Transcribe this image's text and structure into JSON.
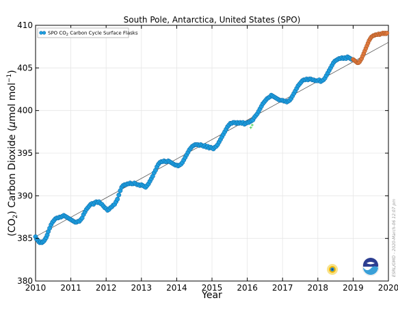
{
  "chart_data": {
    "type": "scatter",
    "title": "South Pole, Antarctica, United States (SPO)",
    "xlabel": "Year",
    "ylabel_parts": [
      "(CO",
      "2",
      ") Carbon Dioxide (",
      "μ",
      "mol mol",
      "−1",
      ")"
    ],
    "xlim": [
      2010,
      2020
    ],
    "ylim": [
      380,
      410
    ],
    "xticks": [
      2010,
      2011,
      2012,
      2013,
      2014,
      2015,
      2016,
      2017,
      2018,
      2019,
      2020
    ],
    "yticks": [
      380,
      385,
      390,
      395,
      400,
      405,
      410
    ],
    "grid": true,
    "legend": {
      "placement": "top-left",
      "text_parts": [
        "SPO CO",
        "2",
        " Carbon Cycle Surface Flasks"
      ]
    },
    "credit": "ESRL/GMD - 2020-March-06 12:07 pm",
    "colors": {
      "flask_fill": "#1e9fe0",
      "flask_edge": "#0d5f9a",
      "prelim_fill": "#e07a3e",
      "prelim_edge": "#9a4c1e",
      "trend": "#555555",
      "outlier": "#4ad15a"
    },
    "series": [
      {
        "kind": "flask",
        "points": [
          [
            2010.0,
            385.2
          ],
          [
            2010.03,
            384.9
          ],
          [
            2010.06,
            384.8
          ],
          [
            2010.09,
            384.6
          ],
          [
            2010.12,
            384.5
          ],
          [
            2010.15,
            384.6
          ],
          [
            2010.18,
            384.5
          ],
          [
            2010.21,
            384.6
          ],
          [
            2010.24,
            384.7
          ],
          [
            2010.27,
            384.9
          ],
          [
            2010.3,
            385.1
          ],
          [
            2010.33,
            385.4
          ],
          [
            2010.36,
            385.8
          ],
          [
            2010.4,
            386.2
          ],
          [
            2010.44,
            386.6
          ],
          [
            2010.48,
            386.9
          ],
          [
            2010.52,
            387.1
          ],
          [
            2010.56,
            387.3
          ],
          [
            2010.6,
            387.4
          ],
          [
            2010.64,
            387.4
          ],
          [
            2010.68,
            387.5
          ],
          [
            2010.72,
            387.5
          ],
          [
            2010.76,
            387.6
          ],
          [
            2010.8,
            387.7
          ],
          [
            2010.84,
            387.6
          ],
          [
            2010.88,
            387.5
          ],
          [
            2010.92,
            387.4
          ],
          [
            2010.96,
            387.3
          ],
          [
            2011.0,
            387.2
          ],
          [
            2011.04,
            387.1
          ],
          [
            2011.08,
            387.0
          ],
          [
            2011.12,
            386.9
          ],
          [
            2011.16,
            386.9
          ],
          [
            2011.2,
            387.0
          ],
          [
            2011.24,
            387.0
          ],
          [
            2011.28,
            387.2
          ],
          [
            2011.32,
            387.4
          ],
          [
            2011.36,
            387.8
          ],
          [
            2011.4,
            388.1
          ],
          [
            2011.44,
            388.4
          ],
          [
            2011.48,
            388.6
          ],
          [
            2011.52,
            388.8
          ],
          [
            2011.56,
            389.0
          ],
          [
            2011.6,
            389.1
          ],
          [
            2011.64,
            389.0
          ],
          [
            2011.68,
            389.2
          ],
          [
            2011.72,
            389.3
          ],
          [
            2011.76,
            389.2
          ],
          [
            2011.8,
            389.3
          ],
          [
            2011.84,
            389.1
          ],
          [
            2011.88,
            389.0
          ],
          [
            2011.92,
            388.8
          ],
          [
            2011.96,
            388.6
          ],
          [
            2012.0,
            388.5
          ],
          [
            2012.04,
            388.3
          ],
          [
            2012.08,
            388.4
          ],
          [
            2012.12,
            388.6
          ],
          [
            2012.16,
            388.7
          ],
          [
            2012.2,
            388.9
          ],
          [
            2012.24,
            389.0
          ],
          [
            2012.28,
            389.3
          ],
          [
            2012.32,
            389.6
          ],
          [
            2012.36,
            390.1
          ],
          [
            2012.4,
            390.6
          ],
          [
            2012.44,
            391.0
          ],
          [
            2012.48,
            391.2
          ],
          [
            2012.52,
            391.3
          ],
          [
            2012.56,
            391.3
          ],
          [
            2012.6,
            391.4
          ],
          [
            2012.64,
            391.4
          ],
          [
            2012.68,
            391.5
          ],
          [
            2012.72,
            391.4
          ],
          [
            2012.76,
            391.4
          ],
          [
            2012.8,
            391.5
          ],
          [
            2012.84,
            391.4
          ],
          [
            2012.88,
            391.3
          ],
          [
            2012.92,
            391.3
          ],
          [
            2012.96,
            391.2
          ],
          [
            2013.0,
            391.3
          ],
          [
            2013.04,
            391.2
          ],
          [
            2013.08,
            391.1
          ],
          [
            2013.12,
            391.0
          ],
          [
            2013.16,
            391.2
          ],
          [
            2013.2,
            391.4
          ],
          [
            2013.24,
            391.7
          ],
          [
            2013.28,
            392.0
          ],
          [
            2013.32,
            392.3
          ],
          [
            2013.36,
            392.7
          ],
          [
            2013.4,
            393.0
          ],
          [
            2013.44,
            393.4
          ],
          [
            2013.48,
            393.7
          ],
          [
            2013.52,
            393.9
          ],
          [
            2013.56,
            394.0
          ],
          [
            2013.6,
            394.0
          ],
          [
            2013.64,
            394.1
          ],
          [
            2013.68,
            394.0
          ],
          [
            2013.72,
            394.0
          ],
          [
            2013.76,
            394.1
          ],
          [
            2013.8,
            394.0
          ],
          [
            2013.84,
            393.9
          ],
          [
            2013.88,
            393.8
          ],
          [
            2013.92,
            393.7
          ],
          [
            2013.96,
            393.6
          ],
          [
            2014.0,
            393.6
          ],
          [
            2014.04,
            393.5
          ],
          [
            2014.08,
            393.6
          ],
          [
            2014.12,
            393.7
          ],
          [
            2014.16,
            393.9
          ],
          [
            2014.2,
            394.2
          ],
          [
            2014.24,
            394.5
          ],
          [
            2014.28,
            394.8
          ],
          [
            2014.32,
            395.1
          ],
          [
            2014.36,
            395.4
          ],
          [
            2014.4,
            395.6
          ],
          [
            2014.44,
            395.8
          ],
          [
            2014.48,
            395.9
          ],
          [
            2014.52,
            396.0
          ],
          [
            2014.56,
            396.0
          ],
          [
            2014.6,
            396.0
          ],
          [
            2014.64,
            395.9
          ],
          [
            2014.68,
            396.0
          ],
          [
            2014.72,
            395.9
          ],
          [
            2014.76,
            395.8
          ],
          [
            2014.8,
            395.9
          ],
          [
            2014.84,
            395.7
          ],
          [
            2014.88,
            395.8
          ],
          [
            2014.92,
            395.6
          ],
          [
            2014.96,
            395.7
          ],
          [
            2015.0,
            395.6
          ],
          [
            2015.04,
            395.5
          ],
          [
            2015.08,
            395.7
          ],
          [
            2015.12,
            395.8
          ],
          [
            2015.16,
            396.0
          ],
          [
            2015.2,
            396.3
          ],
          [
            2015.24,
            396.6
          ],
          [
            2015.28,
            396.9
          ],
          [
            2015.32,
            397.2
          ],
          [
            2015.36,
            397.5
          ],
          [
            2015.4,
            397.8
          ],
          [
            2015.44,
            398.1
          ],
          [
            2015.48,
            398.3
          ],
          [
            2015.52,
            398.5
          ],
          [
            2015.56,
            398.5
          ],
          [
            2015.6,
            398.6
          ],
          [
            2015.64,
            398.6
          ],
          [
            2015.68,
            398.5
          ],
          [
            2015.72,
            398.6
          ],
          [
            2015.76,
            398.5
          ],
          [
            2015.8,
            398.6
          ],
          [
            2015.84,
            398.5
          ],
          [
            2015.88,
            398.6
          ],
          [
            2015.92,
            398.4
          ],
          [
            2015.96,
            398.5
          ],
          [
            2016.0,
            398.6
          ],
          [
            2016.04,
            398.6
          ],
          [
            2016.08,
            398.7
          ],
          [
            2016.12,
            398.8
          ],
          [
            2016.16,
            398.9
          ],
          [
            2016.2,
            399.2
          ],
          [
            2016.24,
            399.4
          ],
          [
            2016.28,
            399.6
          ],
          [
            2016.32,
            399.9
          ],
          [
            2016.36,
            400.2
          ],
          [
            2016.4,
            400.5
          ],
          [
            2016.44,
            400.8
          ],
          [
            2016.48,
            401.0
          ],
          [
            2016.52,
            401.2
          ],
          [
            2016.56,
            401.4
          ],
          [
            2016.6,
            401.5
          ],
          [
            2016.64,
            401.6
          ],
          [
            2016.68,
            401.8
          ],
          [
            2016.72,
            401.7
          ],
          [
            2016.76,
            401.6
          ],
          [
            2016.8,
            401.5
          ],
          [
            2016.84,
            401.4
          ],
          [
            2016.88,
            401.3
          ],
          [
            2016.92,
            401.2
          ],
          [
            2016.96,
            401.2
          ],
          [
            2017.0,
            401.2
          ],
          [
            2017.04,
            401.1
          ],
          [
            2017.08,
            401.1
          ],
          [
            2017.12,
            401.0
          ],
          [
            2017.16,
            401.1
          ],
          [
            2017.2,
            401.2
          ],
          [
            2017.24,
            401.4
          ],
          [
            2017.28,
            401.7
          ],
          [
            2017.32,
            402.0
          ],
          [
            2017.36,
            402.3
          ],
          [
            2017.4,
            402.6
          ],
          [
            2017.44,
            402.9
          ],
          [
            2017.48,
            403.1
          ],
          [
            2017.52,
            403.3
          ],
          [
            2017.56,
            403.5
          ],
          [
            2017.6,
            403.6
          ],
          [
            2017.64,
            403.6
          ],
          [
            2017.68,
            403.7
          ],
          [
            2017.72,
            403.6
          ],
          [
            2017.76,
            403.7
          ],
          [
            2017.8,
            403.7
          ],
          [
            2017.84,
            403.6
          ],
          [
            2017.88,
            403.6
          ],
          [
            2017.92,
            403.5
          ],
          [
            2017.96,
            403.5
          ],
          [
            2018.0,
            403.5
          ],
          [
            2018.04,
            403.6
          ],
          [
            2018.08,
            403.4
          ],
          [
            2018.12,
            403.5
          ],
          [
            2018.16,
            403.6
          ],
          [
            2018.2,
            403.8
          ],
          [
            2018.24,
            404.1
          ],
          [
            2018.28,
            404.4
          ],
          [
            2018.32,
            404.7
          ],
          [
            2018.36,
            405.0
          ],
          [
            2018.4,
            405.3
          ],
          [
            2018.44,
            405.6
          ],
          [
            2018.48,
            405.8
          ],
          [
            2018.52,
            405.9
          ],
          [
            2018.56,
            406.0
          ],
          [
            2018.6,
            406.1
          ],
          [
            2018.64,
            406.1
          ],
          [
            2018.68,
            406.2
          ],
          [
            2018.72,
            406.1
          ],
          [
            2018.76,
            406.2
          ],
          [
            2018.8,
            406.1
          ],
          [
            2018.84,
            406.3
          ],
          [
            2018.88,
            406.2
          ],
          [
            2018.92,
            406.1
          ],
          [
            2018.96,
            406.0
          ]
        ]
      },
      {
        "kind": "preliminary",
        "points": [
          [
            2019.0,
            406.0
          ],
          [
            2019.03,
            405.9
          ],
          [
            2019.06,
            405.8
          ],
          [
            2019.09,
            405.7
          ],
          [
            2019.12,
            405.6
          ],
          [
            2019.15,
            405.6
          ],
          [
            2019.18,
            405.7
          ],
          [
            2019.21,
            405.9
          ],
          [
            2019.24,
            406.1
          ],
          [
            2019.27,
            406.4
          ],
          [
            2019.3,
            406.7
          ],
          [
            2019.33,
            407.0
          ],
          [
            2019.36,
            407.3
          ],
          [
            2019.39,
            407.6
          ],
          [
            2019.42,
            407.9
          ],
          [
            2019.45,
            408.2
          ],
          [
            2019.48,
            408.4
          ],
          [
            2019.51,
            408.6
          ],
          [
            2019.54,
            408.7
          ],
          [
            2019.57,
            408.8
          ],
          [
            2019.6,
            408.8
          ],
          [
            2019.63,
            408.9
          ],
          [
            2019.66,
            408.9
          ],
          [
            2019.69,
            408.9
          ],
          [
            2019.72,
            409.0
          ],
          [
            2019.75,
            408.9
          ],
          [
            2019.78,
            409.0
          ],
          [
            2019.81,
            409.0
          ],
          [
            2019.84,
            409.1
          ],
          [
            2019.87,
            409.0
          ],
          [
            2019.9,
            409.1
          ],
          [
            2019.93,
            409.0
          ],
          [
            2019.96,
            409.1
          ]
        ]
      },
      {
        "kind": "outlier",
        "points": [
          [
            2016.1,
            398.0
          ],
          [
            2016.14,
            398.3
          ]
        ]
      }
    ],
    "trend": [
      [
        2010,
        385.2
      ],
      [
        2020,
        408.0
      ]
    ]
  }
}
